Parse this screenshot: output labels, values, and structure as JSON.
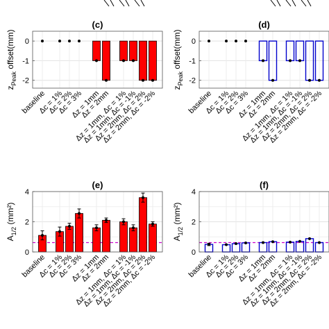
{
  "chart_data": [
    {
      "panel": "c",
      "title": "(c)",
      "type": "bar",
      "ylabel": "z",
      "ylabel_sub": "Peak",
      "ylabel_tail": " offset(mm)",
      "ylim": [
        -2.4,
        0.5
      ],
      "yticks": [
        "0",
        "-1",
        "-2"
      ],
      "yticks_values": [
        0,
        -1,
        -2
      ],
      "grid": true,
      "bar_style": "filled",
      "bar_color": "#ff0000",
      "edge_color": "#000000",
      "categories": [
        "baseline",
        "Δc = 1%",
        "Δc = 2%",
        "Δc = 3%",
        "Δz = 1mm",
        "Δz = 2mm",
        "Δz = 1mm, Δc = 1%",
        "Δz = 1mm, Δc = -1%",
        "Δz = 2mm, Δc = 2%",
        "Δz = 2mm, Δc = -2%"
      ],
      "groups": [
        [
          0
        ],
        [
          1,
          2,
          3
        ],
        [
          4,
          5
        ],
        [
          6,
          7,
          8,
          9
        ]
      ],
      "values": [
        0,
        0,
        0,
        0,
        -1,
        -2,
        -1,
        -1,
        -2,
        -2
      ],
      "errors": [
        0,
        0,
        0,
        0,
        0.02,
        0.02,
        0.02,
        0.02,
        0.02,
        0.02
      ],
      "reference_line": null
    },
    {
      "panel": "d",
      "title": "(d)",
      "type": "bar",
      "ylabel": "z",
      "ylabel_sub": "Peak",
      "ylabel_tail": " offset(mm)",
      "ylim": [
        -2.4,
        0.5
      ],
      "yticks": [
        "0",
        "-1",
        "-2"
      ],
      "yticks_values": [
        0,
        -1,
        -2
      ],
      "grid": true,
      "bar_style": "outline",
      "bar_color": "#0000cc",
      "edge_color": "#0000cc",
      "categories": [
        "baseline",
        "Δc = 1%",
        "Δc = 2%",
        "Δc = 3%",
        "Δz = 1mm",
        "Δz = 2mm",
        "Δz = 1mm, Δc = 1%",
        "Δz = 1mm, Δc = -1%",
        "Δz = 2mm, Δc = 2%",
        "Δz = 2mm, Δc = -2%"
      ],
      "groups": [
        [
          0
        ],
        [
          1,
          2,
          3
        ],
        [
          4,
          5
        ],
        [
          6,
          7,
          8,
          9
        ]
      ],
      "values": [
        0,
        0,
        0,
        0,
        -1,
        -2,
        -1,
        -1,
        -2,
        -2
      ],
      "errors": [
        0,
        0,
        0,
        0,
        0.02,
        0.02,
        0.02,
        0.02,
        0.02,
        0.02
      ],
      "reference_line": null
    },
    {
      "panel": "e",
      "title": "(e)",
      "type": "bar",
      "ylabel": "A",
      "ylabel_sub": "1/2",
      "ylabel_tail": " (mm²)",
      "ylim": [
        0,
        4
      ],
      "yticks": [
        "0",
        "2",
        "4"
      ],
      "yticks_values": [
        0,
        2,
        4
      ],
      "grid": true,
      "bar_style": "filled",
      "bar_color": "#ff0000",
      "edge_color": "#000000",
      "categories": [
        "baseline",
        "Δc = 1%",
        "Δc = 2%",
        "Δc = 3%",
        "Δz = 1mm",
        "Δz = 2mm",
        "Δz = 1mm, Δc = 1%",
        "Δz = 1mm, Δc = -1%",
        "Δz = 2mm, Δc = 2%",
        "Δz = 2mm, Δc = -2%"
      ],
      "groups": [
        [
          0
        ],
        [
          1,
          2,
          3
        ],
        [
          4,
          5
        ],
        [
          6,
          7,
          8,
          9
        ]
      ],
      "values": [
        1.1,
        1.35,
        1.7,
        2.55,
        1.6,
        2.1,
        2.0,
        1.6,
        3.6,
        1.85
      ],
      "errors": [
        0.3,
        0.3,
        0.2,
        0.3,
        0.2,
        0.15,
        0.2,
        0.2,
        0.3,
        0.15
      ],
      "reference_line": {
        "value": 0.62,
        "color": "#cc00cc"
      }
    },
    {
      "panel": "f",
      "title": "(f)",
      "type": "bar",
      "ylabel": "A",
      "ylabel_sub": "1/2",
      "ylabel_tail": " (mm²)",
      "ylim": [
        0,
        4
      ],
      "yticks": [
        "0",
        "2",
        "4"
      ],
      "yticks_values": [
        0,
        2,
        4
      ],
      "grid": true,
      "bar_style": "outline",
      "bar_color": "#0000cc",
      "edge_color": "#0000cc",
      "categories": [
        "baseline",
        "Δc = 1%",
        "Δc = 2%",
        "Δc = 3%",
        "Δz = 1mm",
        "Δz = 2mm",
        "Δz = 1mm, Δc = 1%",
        "Δz = 1mm, Δc = -1%",
        "Δz = 2mm, Δc = 2%",
        "Δz = 2mm, Δc = -2%"
      ],
      "groups": [
        [
          0
        ],
        [
          1,
          2,
          3
        ],
        [
          4,
          5
        ],
        [
          6,
          7,
          8,
          9
        ]
      ],
      "values": [
        0.5,
        0.48,
        0.55,
        0.6,
        0.62,
        0.68,
        0.65,
        0.7,
        0.88,
        0.62
      ],
      "errors": [
        0.08,
        0.05,
        0.05,
        0.05,
        0.05,
        0.05,
        0.05,
        0.05,
        0.05,
        0.05
      ],
      "reference_line": {
        "value": 0.62,
        "color": "#cc00cc"
      }
    }
  ]
}
